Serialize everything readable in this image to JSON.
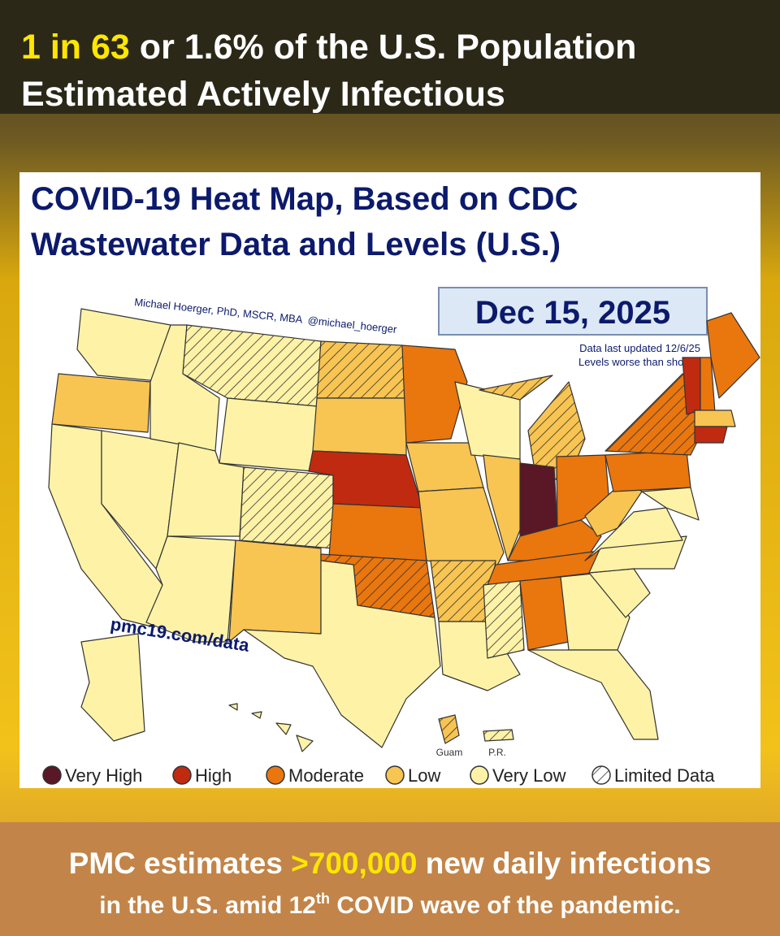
{
  "header": {
    "highlight": "1 in 63",
    "rest": " or 1.6% of the U.S. Population",
    "line2": "Estimated Actively Infectious"
  },
  "map": {
    "title_lines": [
      "COVID-19 Heat Map, Based on CDC",
      "Wastewater Data and Levels (U.S.)"
    ],
    "date": "Dec 15, 2025",
    "author": "Michael Hoerger, PhD, MSCR, MBA  @michael_hoerger",
    "notes": [
      "Data last updated 12/6/25",
      "Levels worse than shown"
    ],
    "url": "pmc19.com/data",
    "territories": [
      "Guam",
      "P.R."
    ],
    "legend": [
      {
        "label": "Very High",
        "color": "#5a1726"
      },
      {
        "label": "High",
        "color": "#c02a10"
      },
      {
        "label": "Moderate",
        "color": "#ea760e"
      },
      {
        "label": "Low",
        "color": "#f8c452"
      },
      {
        "label": "Very Low",
        "color": "#fdf2a6"
      },
      {
        "label": "Limited Data"
      }
    ]
  },
  "footer": {
    "pre": "PMC estimates ",
    "highlight": ">700,000",
    "post": " new daily infections",
    "line2_pre": "in the U.S. amid 12",
    "sup": "th",
    "line2_post": " COVID wave of the pandemic."
  }
}
